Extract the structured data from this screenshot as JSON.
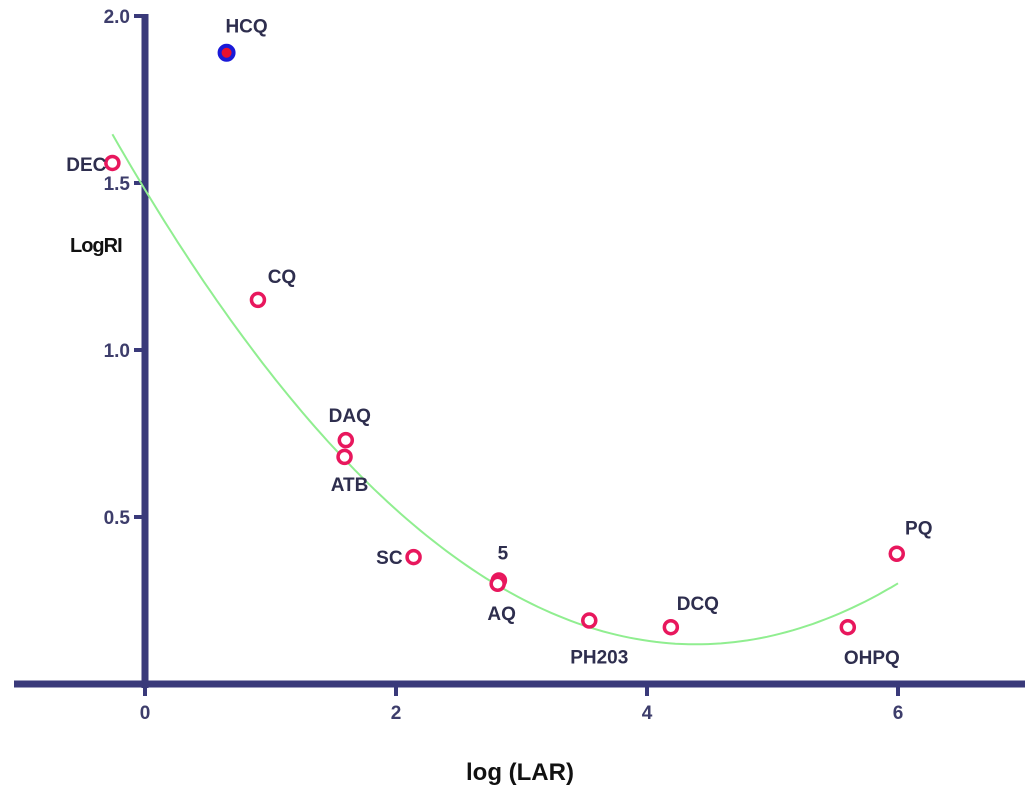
{
  "chart_data": {
    "type": "scatter",
    "xlabel": "log (LAR)",
    "ylabel": "LogRI",
    "xlim": [
      -1,
      7
    ],
    "ylim": [
      0,
      2.0
    ],
    "x_ticks": [
      0,
      2,
      4,
      6
    ],
    "y_ticks": [
      0.5,
      1.0,
      1.5,
      2.0
    ],
    "x_tick_labels": [
      "0",
      "2",
      "4",
      "6"
    ],
    "y_tick_labels": [
      "0.5",
      "1.0",
      "1.5",
      "2.0"
    ],
    "grid": false,
    "points": [
      {
        "label": "HCQ",
        "x": 0.65,
        "y": 1.89,
        "style": "filled"
      },
      {
        "label": "DEC",
        "x": -0.26,
        "y": 1.56,
        "style": "open"
      },
      {
        "label": "CQ",
        "x": 0.9,
        "y": 1.15,
        "style": "open"
      },
      {
        "label": "DAQ",
        "x": 1.6,
        "y": 0.73,
        "style": "open"
      },
      {
        "label": "ATB",
        "x": 1.59,
        "y": 0.68,
        "style": "open"
      },
      {
        "label": "SC",
        "x": 2.14,
        "y": 0.38,
        "style": "open"
      },
      {
        "label": "5",
        "x": 2.82,
        "y": 0.31,
        "style": "open"
      },
      {
        "label": "AQ",
        "x": 2.81,
        "y": 0.3,
        "style": "open"
      },
      {
        "label": "PH203",
        "x": 3.54,
        "y": 0.19,
        "style": "open"
      },
      {
        "label": "DCQ",
        "x": 4.19,
        "y": 0.17,
        "style": "open"
      },
      {
        "label": "OHPQ",
        "x": 5.6,
        "y": 0.17,
        "style": "open"
      },
      {
        "label": "PQ",
        "x": 5.99,
        "y": 0.39,
        "style": "open"
      }
    ],
    "fit_curve": {
      "type": "quadratic",
      "coefficients": [
        1.48,
        -0.62,
        0.0706
      ],
      "x_range": [
        -0.26,
        6.0
      ],
      "color": "#90ee90"
    },
    "colors": {
      "axis": "#3a3a7a",
      "open_marker": "#e8175d",
      "filled_marker_outer": "#1a1ad8",
      "filled_marker_inner": "#e8102e"
    }
  }
}
